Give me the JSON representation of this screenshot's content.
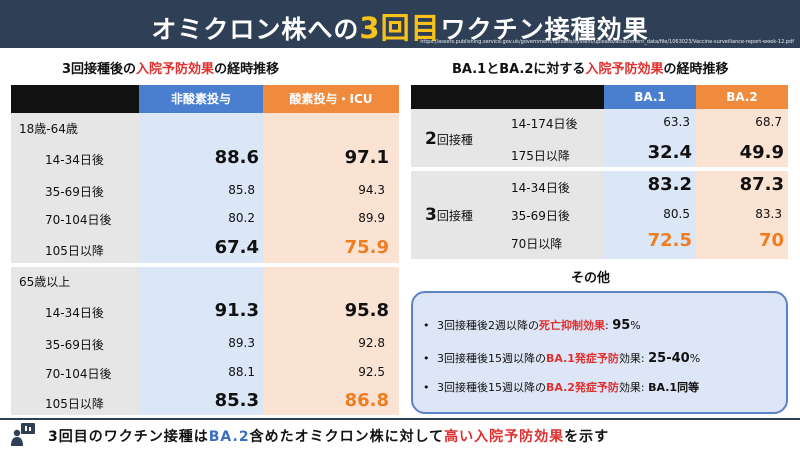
{
  "header": {
    "title_pre": "オミクロン株への",
    "title_hl": "3回目",
    "title_post": "ワクチン接種効果",
    "url": "https://assets.publishing.service.gov.uk/government/uploads/system/uploads/attachment_data/file/1063023/Vaccine-surveillance-report-week-12.pdf",
    "highlight_color": "#f7c31a"
  },
  "left": {
    "title_pre": "3回接種後の",
    "title_red": "入院予防効果",
    "title_post": "の経時推移",
    "col1": "非酸素投与",
    "col2": "酸素投与・ICU",
    "groups": [
      {
        "label": "18歳-64歳",
        "rows": [
          {
            "period": "14-34日後",
            "v1": "88.6",
            "v2": "97.1"
          },
          {
            "period": "35-69日後",
            "v1": "85.8",
            "v2": "94.3"
          },
          {
            "period": "70-104日後",
            "v1": "80.2",
            "v2": "89.9"
          },
          {
            "period": "105日以降",
            "v1": "67.4",
            "v2": "75.9"
          }
        ]
      },
      {
        "label": "65歳以上",
        "rows": [
          {
            "period": "14-34日後",
            "v1": "91.3",
            "v2": "95.8"
          },
          {
            "period": "35-69日後",
            "v1": "89.3",
            "v2": "92.8"
          },
          {
            "period": "70-104日後",
            "v1": "88.1",
            "v2": "92.5"
          },
          {
            "period": "105日以降",
            "v1": "85.3",
            "v2": "86.8"
          }
        ]
      }
    ]
  },
  "right": {
    "title_a": "BA.1",
    "title_b": "と",
    "title_c": "BA.2",
    "title_d": "に対する",
    "title_red": "入院予防効果",
    "title_post": "の経時推移",
    "col1": "BA.1",
    "col2": "BA.2",
    "doses": [
      {
        "num": "2",
        "suffix": "回接種",
        "rows": [
          {
            "period": "14-174日後",
            "v1": "63.3",
            "v2": "68.7"
          },
          {
            "period": "175日以降",
            "v1": "32.4",
            "v2": "49.9"
          }
        ]
      },
      {
        "num": "3",
        "suffix": "回接種",
        "rows": [
          {
            "period": "14-34日後",
            "v1": "83.2",
            "v2": "87.3"
          },
          {
            "period": "35-69日後",
            "v1": "80.5",
            "v2": "83.3"
          },
          {
            "period": "70日以降",
            "v1": "72.5",
            "v2": "70"
          }
        ]
      }
    ]
  },
  "others": {
    "title": "その他",
    "items": [
      {
        "pre": "3回接種後2週以降の",
        "red": "死亡抑制効果",
        "mid": ": ",
        "val": "95",
        "unit": "%"
      },
      {
        "pre": "3回接種後15週以降の",
        "red": "BA.1発症予防",
        "mid": "効果: ",
        "val": "25-40",
        "unit": "%"
      },
      {
        "pre": "3回接種後15週以降の",
        "red": "BA.2発症予防",
        "mid": "効果: ",
        "val": "BA.1同等",
        "unit": ""
      }
    ]
  },
  "bottom": {
    "pre": "3回目のワクチン接種は",
    "blue": "BA.2",
    "mid": "含めたオミクロン株に対して",
    "red": "高い入院予防効果",
    "post": "を示す"
  },
  "colors": {
    "header_bg": "#2f3f55",
    "blue_col": "#4a7fd0",
    "orange_col": "#f08a3c",
    "accent_red": "#e03030",
    "accent_orange": "#ef7d22"
  }
}
